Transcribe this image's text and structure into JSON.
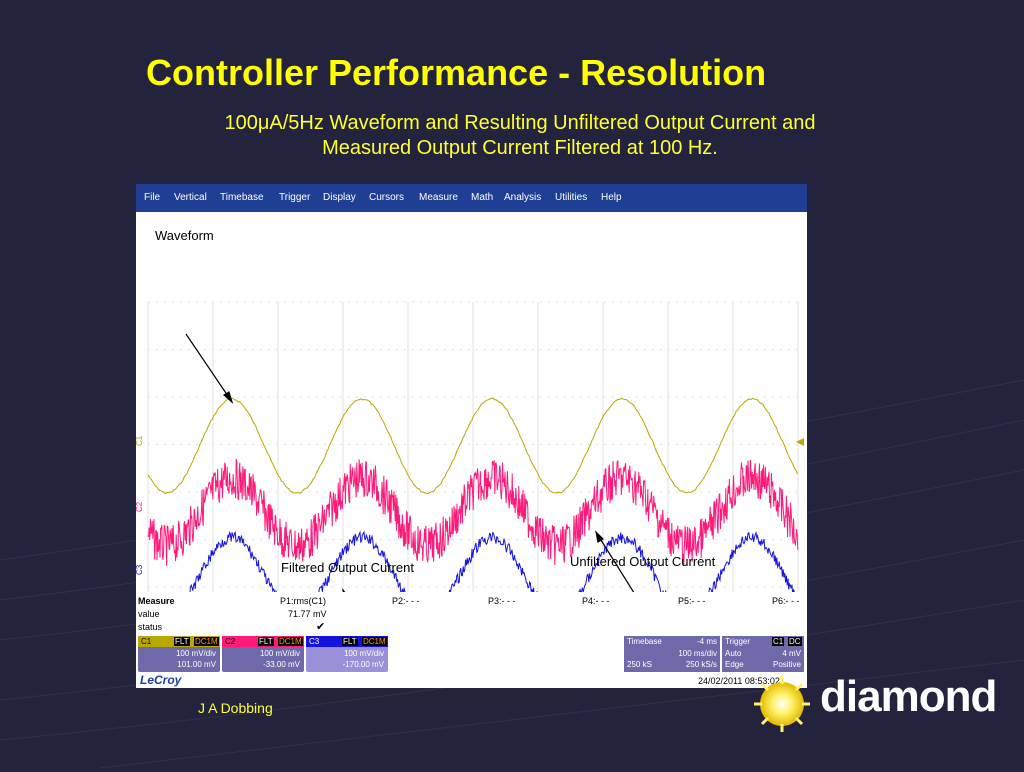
{
  "slide": {
    "title": "Controller Performance - Resolution",
    "subtitle_prefix": "100",
    "subtitle_mu": "μ",
    "subtitle_rest_1": "A/5Hz Waveform and Resulting Unfiltered Output Current and",
    "subtitle_line_2": "Measured Output Current Filtered at 100 Hz.",
    "author": "J A Dobbing",
    "brand": "diamond"
  },
  "colors": {
    "background": "#23233d",
    "title": "#ffff00",
    "c1": "#b9a800",
    "c2": "#ff1a7a",
    "c3": "#1414dc",
    "menubar": "#1f3f94"
  },
  "scope": {
    "menu": [
      "File",
      "Vertical",
      "Timebase",
      "Trigger",
      "Display",
      "Cursors",
      "Measure",
      "Math",
      "Analysis",
      "Utilities",
      "Help"
    ],
    "annotations": {
      "waveform": "Waveform",
      "filtered": "Filtered Output Current",
      "unfiltered": "Unfiltered Output Current"
    },
    "channel_labels": [
      "C1",
      "C2",
      "C3"
    ],
    "measure": {
      "header": "Measure",
      "row_labels": [
        "value",
        "status"
      ],
      "p1": "P1:rms(C1)",
      "p1_value": "71.77 mV",
      "p1_status": "✔",
      "p2": "P2:- - -",
      "p3": "P3:- - -",
      "p4": "P4:- - -",
      "p5": "P5:- - -",
      "p6": "P6:- - -"
    },
    "channels": [
      {
        "name": "C1",
        "tag1": "FLT",
        "tag2": "DC1M",
        "scale": "100 mV/div",
        "offset": "101.00 mV"
      },
      {
        "name": "C2",
        "tag1": "FLT",
        "tag2": "DC1M",
        "scale": "100 mV/div",
        "offset": "-33.00 mV"
      },
      {
        "name": "C3",
        "tag1": "FLT",
        "tag2": "DC1M",
        "scale": "100 mV/div",
        "offset": "-170.00 mV"
      }
    ],
    "timebase": {
      "label": "Timebase",
      "delay": "-4 ms",
      "div": "100 ms/div",
      "samples": "250 kS",
      "rate": "250 kS/s"
    },
    "trigger": {
      "label": "Trigger",
      "chan": "C1",
      "coupling": "DC",
      "mode": "Auto",
      "level": "4 mV",
      "type": "Edge",
      "slope": "Positive"
    },
    "brand": "LeCroy",
    "datetime": "24/02/2011 08:53:02"
  },
  "waveforms": {
    "cycles": 5,
    "c1": {
      "amplitude": 1.0,
      "noise": 0.02
    },
    "c2": {
      "amplitude": 0.75,
      "noise": 0.45
    },
    "c3": {
      "amplitude": 0.8,
      "noise": 0.12
    }
  }
}
